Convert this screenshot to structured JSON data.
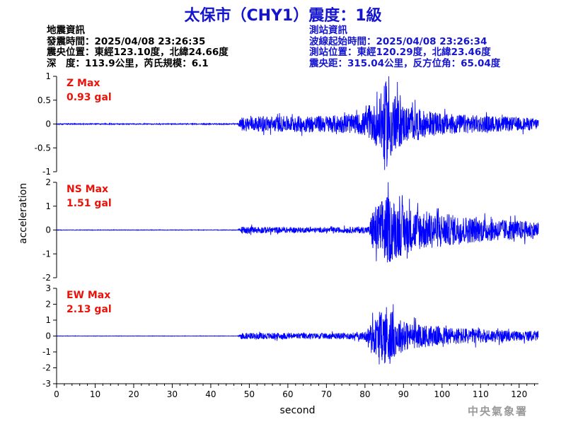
{
  "title": "太保市（CHY1）震度：1級",
  "left_info": [
    "地震資訊",
    "發震時間：2025/04/08 23:26:35",
    "震央位置：東經123.10度，北緯24.66度",
    "深　度：113.9公里，芮氏規模：6.1"
  ],
  "right_info": [
    "測站資訊",
    "波線起始時間：2025/04/08 23:26:34",
    "測站位置：東經120.29度，北緯23.46度",
    "震央距：315.04公里，反方位角：65.04度"
  ],
  "footer": "中央氣象署",
  "colors": {
    "trace": "#0000ff",
    "title": "#1515d0",
    "max_label": "#e8140a"
  },
  "chart_data": {
    "type": "line",
    "xlabel": "second",
    "ylabel": "acceleration",
    "xlim": [
      0,
      125
    ],
    "xticks": [
      0,
      10,
      20,
      30,
      40,
      50,
      60,
      70,
      80,
      90,
      100,
      110,
      120
    ],
    "series": [
      {
        "name": "Z",
        "max_label": "Z Max",
        "max_value": "0.93 gal",
        "ylim": [
          -1,
          1
        ],
        "yticks": [
          -1,
          -0.5,
          0,
          0.5,
          1
        ],
        "envelope": [
          [
            0,
            0.01
          ],
          [
            47,
            0.01
          ],
          [
            48,
            0.15
          ],
          [
            55,
            0.16
          ],
          [
            63,
            0.17
          ],
          [
            70,
            0.18
          ],
          [
            78,
            0.2
          ],
          [
            81,
            0.3
          ],
          [
            84,
            0.55
          ],
          [
            85.5,
            0.93
          ],
          [
            87,
            0.7
          ],
          [
            90,
            0.4
          ],
          [
            94,
            0.3
          ],
          [
            100,
            0.22
          ],
          [
            110,
            0.18
          ],
          [
            120,
            0.14
          ],
          [
            125,
            0.12
          ]
        ]
      },
      {
        "name": "NS",
        "max_label": "NS Max",
        "max_value": "1.51 gal",
        "ylim": [
          -2,
          2
        ],
        "yticks": [
          -2,
          -1,
          0,
          1,
          2
        ],
        "envelope": [
          [
            0,
            0.01
          ],
          [
            47,
            0.01
          ],
          [
            48,
            0.15
          ],
          [
            60,
            0.12
          ],
          [
            70,
            0.1
          ],
          [
            81,
            0.15
          ],
          [
            82,
            0.9
          ],
          [
            84,
            1.2
          ],
          [
            85.5,
            1.51
          ],
          [
            88,
            1.2
          ],
          [
            92,
            0.9
          ],
          [
            96,
            0.8
          ],
          [
            100,
            0.7
          ],
          [
            110,
            0.5
          ],
          [
            120,
            0.4
          ],
          [
            125,
            0.35
          ]
        ]
      },
      {
        "name": "EW",
        "max_label": "EW Max",
        "max_value": "2.13 gal",
        "ylim": [
          -3,
          3
        ],
        "yticks": [
          -3,
          -2,
          -1,
          0,
          1,
          2,
          3
        ],
        "envelope": [
          [
            0,
            0.01
          ],
          [
            47,
            0.01
          ],
          [
            48,
            0.2
          ],
          [
            60,
            0.2
          ],
          [
            70,
            0.18
          ],
          [
            80,
            0.25
          ],
          [
            82,
            1.0
          ],
          [
            85,
            1.7
          ],
          [
            85.6,
            2.13
          ],
          [
            88,
            1.2
          ],
          [
            92,
            0.8
          ],
          [
            100,
            0.6
          ],
          [
            110,
            0.45
          ],
          [
            120,
            0.3
          ],
          [
            125,
            0.3
          ]
        ]
      }
    ]
  }
}
